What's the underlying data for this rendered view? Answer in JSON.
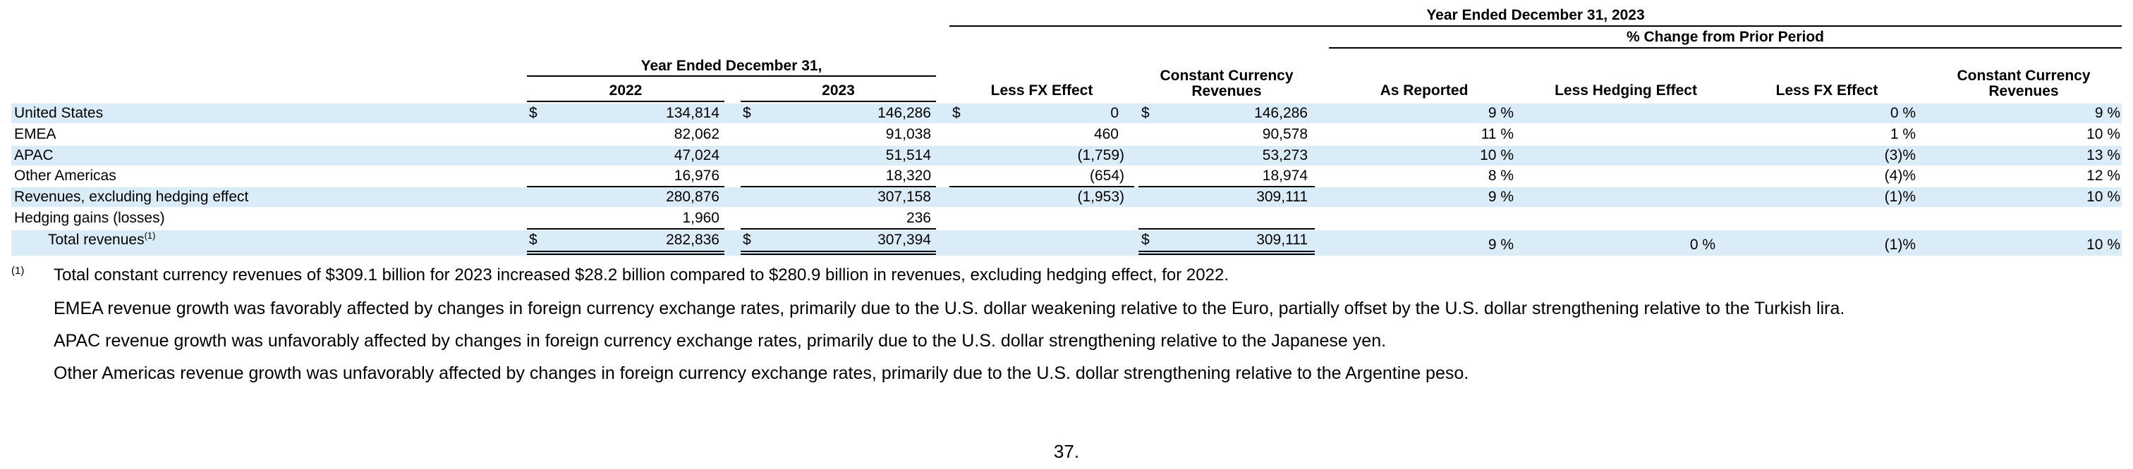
{
  "headers": {
    "year_ended_dec31_2023": "Year Ended December 31, 2023",
    "pct_change_prior": "% Change from Prior Period",
    "year_ended_dec31": "Year Ended December 31,",
    "y2022": "2022",
    "y2023": "2023",
    "less_fx": "Less FX Effect",
    "cc_rev_line1": "Constant Currency",
    "cc_rev_line2": "Revenues",
    "as_reported": "As Reported",
    "less_hedging": "Less Hedging Effect",
    "less_fx2": "Less FX Effect",
    "cc_rev2_line1": "Constant Currency",
    "cc_rev2_line2": "Revenues"
  },
  "currency_symbol": "$",
  "rows": [
    {
      "label": "United States",
      "v2022": "134,814",
      "v2023": "146,286",
      "fx": "0",
      "cc": "146,286",
      "asrep": "9 %",
      "hedge": "",
      "fx2": "0 %",
      "cc2": "9 %"
    },
    {
      "label": "EMEA",
      "v2022": "82,062",
      "v2023": "91,038",
      "fx": "460",
      "cc": "90,578",
      "asrep": "11 %",
      "hedge": "",
      "fx2": "1 %",
      "cc2": "10 %"
    },
    {
      "label": "APAC",
      "v2022": "47,024",
      "v2023": "51,514",
      "fx": "(1,759)",
      "cc": "53,273",
      "asrep": "10 %",
      "hedge": "",
      "fx2": "(3)%",
      "cc2": "13 %"
    },
    {
      "label": "Other Americas",
      "v2022": "16,976",
      "v2023": "18,320",
      "fx": "(654)",
      "cc": "18,974",
      "asrep": "8 %",
      "hedge": "",
      "fx2": "(4)%",
      "cc2": "12 %"
    },
    {
      "label": "Revenues, excluding hedging effect",
      "v2022": "280,876",
      "v2023": "307,158",
      "fx": "(1,953)",
      "cc": "309,111",
      "asrep": "9 %",
      "hedge": "",
      "fx2": "(1)%",
      "cc2": "10 %"
    },
    {
      "label": "Hedging gains (losses)",
      "v2022": "1,960",
      "v2023": "236",
      "fx": "",
      "cc": "",
      "asrep": "",
      "hedge": "",
      "fx2": "",
      "cc2": ""
    }
  ],
  "total": {
    "label": "Total revenues",
    "sup": "(1)",
    "v2022": "282,836",
    "v2023": "307,394",
    "cc": "309,111",
    "asrep": "9 %",
    "hedge": "0 %",
    "fx2": "(1)%",
    "cc2": "10 %"
  },
  "footnote": {
    "marker": "(1)",
    "text": "Total constant currency revenues of $309.1 billion for 2023 increased $28.2 billion compared to $280.9 billion in revenues, excluding hedging effect, for 2022."
  },
  "paragraphs": [
    "EMEA revenue growth was favorably affected by changes in foreign currency exchange rates, primarily due to the U.S. dollar weakening relative to the Euro, partially offset by the U.S. dollar strengthening relative to the Turkish lira.",
    "APAC revenue growth was unfavorably affected by changes in foreign currency exchange rates, primarily due to the U.S. dollar strengthening relative to the Japanese yen.",
    "Other Americas revenue growth was unfavorably affected by changes in foreign currency exchange rates, primarily due to the U.S. dollar strengthening relative to the Argentine peso."
  ],
  "page_number": "37.",
  "colors": {
    "row_band": "#d9ecf8"
  }
}
